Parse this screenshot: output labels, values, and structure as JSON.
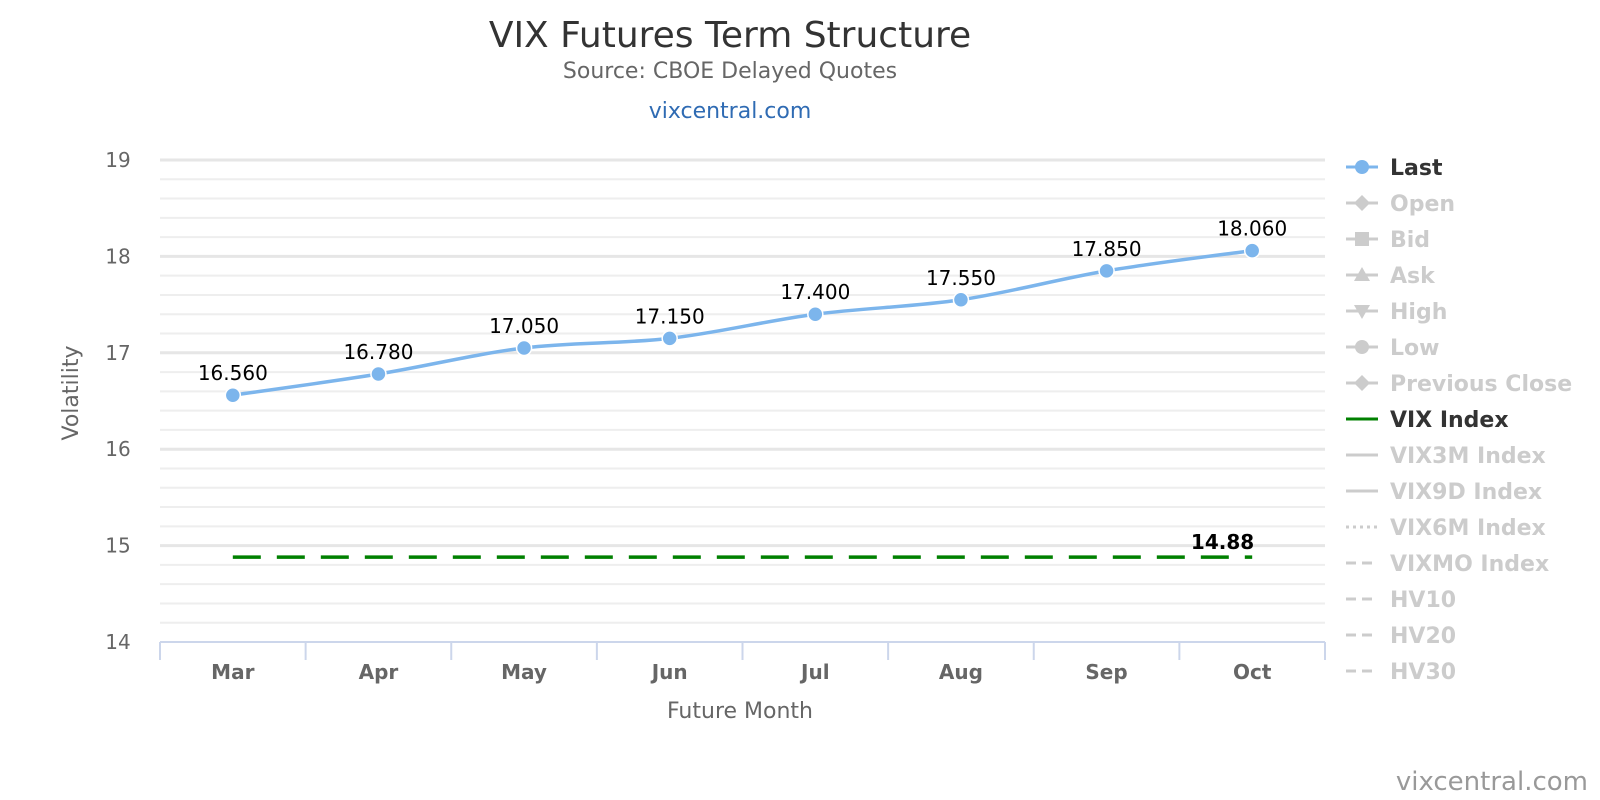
{
  "chart_data": {
    "type": "line",
    "title": "VIX Futures Term Structure",
    "subtitle": "Source: CBOE Delayed Quotes",
    "link_text": "vixcentral.com",
    "credit": "vixcentral.com",
    "xlabel": "Future Month",
    "ylabel": "Volatility",
    "categories": [
      "Mar",
      "Apr",
      "May",
      "Jun",
      "Jul",
      "Aug",
      "Sep",
      "Oct"
    ],
    "ylim": [
      14,
      19
    ],
    "yticks": [
      14,
      15,
      16,
      17,
      18,
      19
    ],
    "minor_grid": true,
    "legend_position": "right",
    "series": [
      {
        "name": "Last",
        "color": "#7cb5ec",
        "values": [
          16.56,
          16.78,
          17.05,
          17.15,
          17.4,
          17.55,
          17.85,
          18.06
        ],
        "labels": [
          "16.560",
          "16.780",
          "17.050",
          "17.150",
          "17.400",
          "17.550",
          "17.850",
          "18.060"
        ],
        "markers": true,
        "smooth": true
      },
      {
        "name": "VIX Index",
        "color": "#008000",
        "values": [
          14.88,
          14.88,
          14.88,
          14.88,
          14.88,
          14.88,
          14.88,
          14.88
        ],
        "end_label": "14.88",
        "dash": true
      }
    ],
    "legend": [
      {
        "name": "Last",
        "symbol": "circle-line",
        "active": true,
        "color": "#7cb5ec"
      },
      {
        "name": "Open",
        "symbol": "diamond-line",
        "active": false
      },
      {
        "name": "Bid",
        "symbol": "square-line",
        "active": false
      },
      {
        "name": "Ask",
        "symbol": "triangle-line",
        "active": false
      },
      {
        "name": "High",
        "symbol": "triangle-down-line",
        "active": false
      },
      {
        "name": "Low",
        "symbol": "circle-line",
        "active": false
      },
      {
        "name": "Previous Close",
        "symbol": "diamond-line",
        "active": false
      },
      {
        "name": "VIX Index",
        "symbol": "line",
        "active": true,
        "color": "#008000"
      },
      {
        "name": "VIX3M Index",
        "symbol": "line",
        "active": false
      },
      {
        "name": "VIX9D Index",
        "symbol": "line",
        "active": false
      },
      {
        "name": "VIX6M Index",
        "symbol": "dotted-line",
        "active": false
      },
      {
        "name": "VIXMO Index",
        "symbol": "dashed-line",
        "active": false
      },
      {
        "name": "HV10",
        "symbol": "dashed-line",
        "active": false
      },
      {
        "name": "HV20",
        "symbol": "dashed-line",
        "active": false
      },
      {
        "name": "HV30",
        "symbol": "dashed-line",
        "active": false
      }
    ],
    "colors": {
      "inactive_legend": "#cccccc",
      "active_legend_text": "#333333",
      "grid": "#e6e6e6",
      "axis": "#ccd6eb"
    }
  }
}
